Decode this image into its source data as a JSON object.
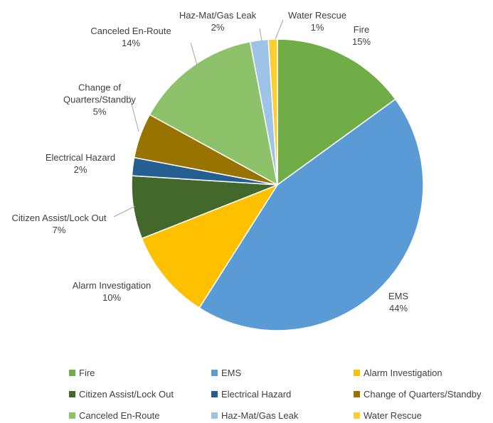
{
  "chart_data": {
    "type": "pie",
    "categories": [
      "Fire",
      "EMS",
      "Alarm Investigation",
      "Citizen Assist/Lock Out",
      "Electrical Hazard",
      "Change of Quarters/Standby",
      "Canceled En-Route",
      "Haz-Mat/Gas Leak",
      "Water Rescue"
    ],
    "values": [
      15,
      44,
      10,
      7,
      2,
      5,
      14,
      2,
      1
    ],
    "value_labels": [
      "15%",
      "44%",
      "10%",
      "7%",
      "2%",
      "5%",
      "14%",
      "2%",
      "1%"
    ],
    "colors": [
      "#70ad47",
      "#5b9bd5",
      "#ffc000",
      "#43682b",
      "#255e91",
      "#997300",
      "#8dc26a",
      "#9dc3e6",
      "#ffcd33"
    ],
    "legend": "bottom"
  }
}
